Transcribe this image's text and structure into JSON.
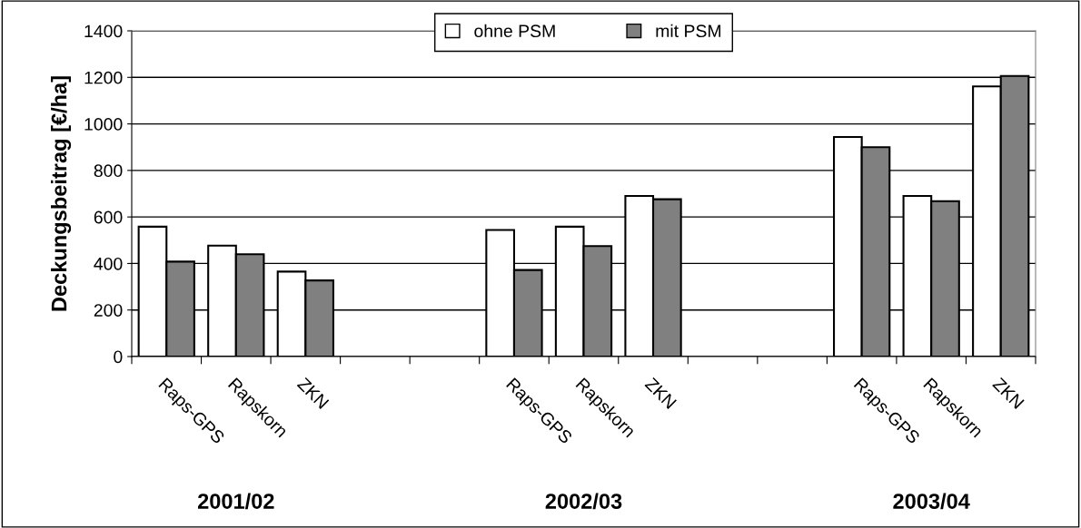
{
  "chart_data": {
    "type": "bar",
    "ylabel": "Deckungsbeitrag [€/ha]",
    "categories": [
      "Raps-GPS",
      "Rapskorn",
      "ZKN",
      null,
      null,
      "Raps-GPS",
      "Rapskorn",
      "ZKN",
      null,
      null,
      "Raps-GPS",
      "Rapskorn",
      "ZKN"
    ],
    "series": [
      {
        "name": "ohne PSM",
        "color": "#ffffff",
        "values": [
          558,
          477,
          365,
          null,
          null,
          544,
          558,
          690,
          null,
          null,
          944,
          690,
          1161
        ]
      },
      {
        "name": "mit PSM",
        "color": "#808080",
        "values": [
          408,
          440,
          327,
          null,
          null,
          372,
          475,
          676,
          null,
          null,
          900,
          668,
          1206
        ]
      }
    ],
    "annotations": [
      "2001/02",
      "2002/03",
      "2003/04"
    ],
    "ylim": [
      0,
      1400
    ],
    "yticks": [
      0,
      200,
      400,
      600,
      800,
      1000,
      1200,
      1400
    ],
    "grid": "y",
    "legend": "top"
  }
}
